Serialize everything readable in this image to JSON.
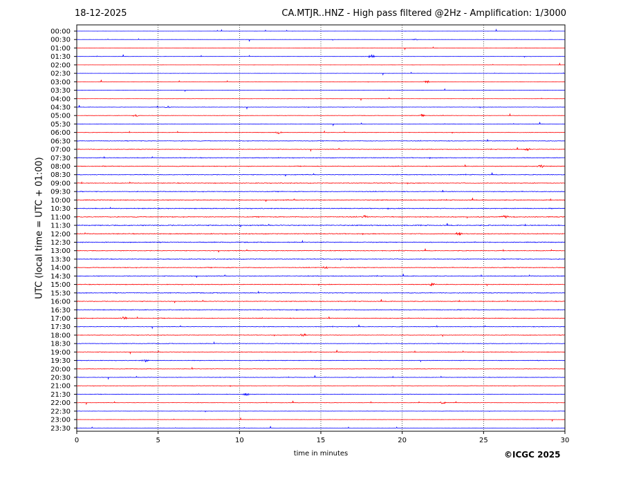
{
  "chart_data": {
    "type": "line",
    "date": "18-12-2025",
    "title": "CA.MTJR..HNZ - High pass filtered @2Hz - Amplification: 1/3000",
    "xlabel": "time in minutes",
    "ylabel": "UTC (local time = UTC + 01:00)",
    "xlim": [
      0,
      30
    ],
    "x_ticks": [
      0,
      5,
      10,
      15,
      20,
      25,
      30
    ],
    "grid": "vertical dotted at x ticks",
    "row_interval_minutes": 30,
    "row_labels": [
      "00:00",
      "00:30",
      "01:00",
      "01:30",
      "02:00",
      "02:30",
      "03:00",
      "03:30",
      "04:00",
      "04:30",
      "05:00",
      "05:30",
      "06:00",
      "06:30",
      "07:00",
      "07:30",
      "08:00",
      "08:30",
      "09:00",
      "09:30",
      "10:00",
      "10:30",
      "11:00",
      "11:30",
      "12:00",
      "12:30",
      "13:00",
      "13:30",
      "14:00",
      "14:30",
      "15:00",
      "15:30",
      "16:00",
      "16:30",
      "17:00",
      "17:30",
      "18:00",
      "18:30",
      "19:00",
      "19:30",
      "20:00",
      "20:30",
      "21:00",
      "21:30",
      "22:00",
      "22:30",
      "23:00",
      "23:30"
    ],
    "trace_colors": [
      "#ff0000",
      "#0000ff"
    ],
    "color_note_rows_starting_red": "hourly rows red, half-hour rows blue, except first two rows blue",
    "noise_level": [
      0.04,
      0.05,
      0.1,
      0.12,
      0.05,
      0.08,
      0.1,
      0.08,
      0.08,
      0.15,
      0.15,
      0.15,
      0.2,
      0.25,
      0.25,
      0.3,
      0.3,
      0.3,
      0.3,
      0.3,
      0.35,
      0.35,
      0.35,
      0.4,
      0.35,
      0.35,
      0.3,
      0.3,
      0.3,
      0.3,
      0.3,
      0.3,
      0.3,
      0.3,
      0.3,
      0.25,
      0.25,
      0.25,
      0.25,
      0.25,
      0.2,
      0.2,
      0.2,
      0.2,
      0.15,
      0.12,
      0.1,
      0.05
    ],
    "events": [
      {
        "row": "00:30",
        "x": 20.8,
        "amp": 1.5
      },
      {
        "row": "01:30",
        "x": 18.1,
        "amp": 3.5
      },
      {
        "row": "03:00",
        "x": 21.5,
        "amp": 2.5
      },
      {
        "row": "04:30",
        "x": 5.6,
        "amp": 2.0
      },
      {
        "row": "05:00",
        "x": 3.6,
        "amp": 2.5
      },
      {
        "row": "05:00",
        "x": 21.2,
        "amp": 2.5
      },
      {
        "row": "06:00",
        "x": 12.4,
        "amp": 3.0
      },
      {
        "row": "07:00",
        "x": 27.7,
        "amp": 2.5
      },
      {
        "row": "08:00",
        "x": 28.5,
        "amp": 3.0
      },
      {
        "row": "11:00",
        "x": 17.7,
        "amp": 3.5
      },
      {
        "row": "11:00",
        "x": 26.3,
        "amp": 4.0
      },
      {
        "row": "12:00",
        "x": 23.5,
        "amp": 3.0
      },
      {
        "row": "14:00",
        "x": 15.3,
        "amp": 3.0
      },
      {
        "row": "15:00",
        "x": 21.8,
        "amp": 2.5
      },
      {
        "row": "17:00",
        "x": 2.9,
        "amp": 3.0
      },
      {
        "row": "18:00",
        "x": 13.9,
        "amp": 3.0
      },
      {
        "row": "19:30",
        "x": 4.2,
        "amp": 2.5
      },
      {
        "row": "21:30",
        "x": 10.4,
        "amp": 3.0
      },
      {
        "row": "22:00",
        "x": 22.5,
        "amp": 2.0
      }
    ]
  },
  "footer": {
    "copyright": "©ICGC 2025"
  }
}
